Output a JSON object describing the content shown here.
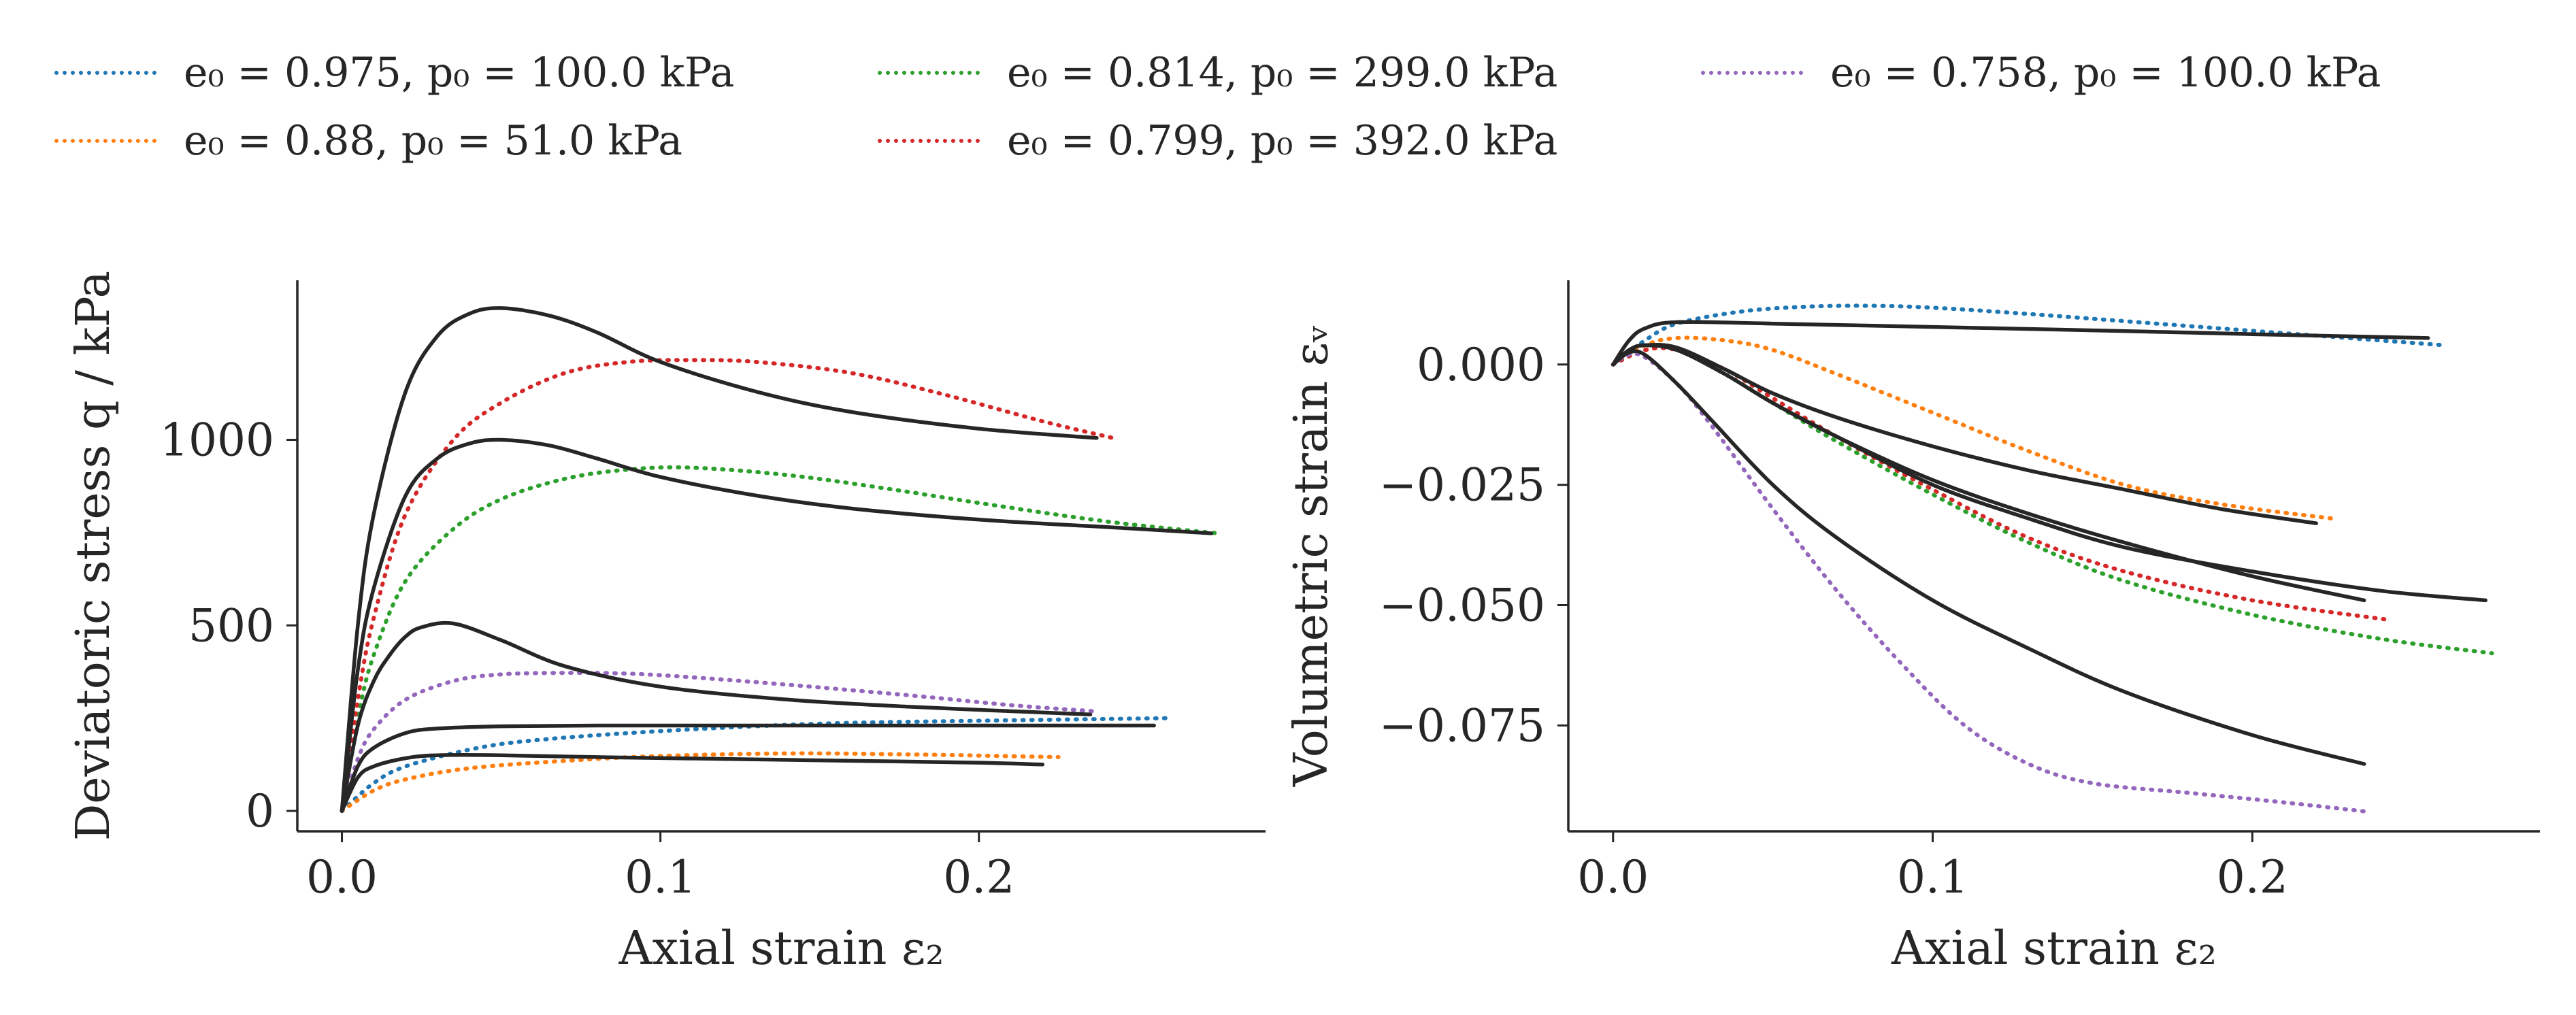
{
  "legend": {
    "items": [
      {
        "label": "e₀ = 0.975, p₀ = 100.0 kPa",
        "color": "#1f77b4"
      },
      {
        "label": "e₀ = 0.88, p₀ = 51.0 kPa",
        "color": "#ff7f0e"
      },
      {
        "label": "e₀ = 0.814, p₀ = 299.0 kPa",
        "color": "#2ca02c"
      },
      {
        "label": "e₀ = 0.799, p₀ = 392.0 kPa",
        "color": "#d62728"
      },
      {
        "label": "e₀ = 0.758, p₀ = 100.0 kPa",
        "color": "#9467bd"
      }
    ]
  },
  "chart_data": [
    {
      "type": "line",
      "xlabel": "Axial strain ε₂",
      "ylabel": "Deviatoric stress q / kPa",
      "xlim": [
        -0.014,
        0.29
      ],
      "ylim": [
        -55,
        1430
      ],
      "xticks": [
        0.0,
        0.1,
        0.2
      ],
      "xtick_labels": [
        "0.0",
        "0.1",
        "0.2"
      ],
      "yticks": [
        0,
        500,
        1000
      ],
      "ytick_labels": [
        "0",
        "500",
        "1000"
      ],
      "grid": false,
      "series": [
        {
          "name": "e₀ = 0.975, p₀ = 100.0 kPa",
          "style": "dotted",
          "color": "#1f77b4",
          "x": [
            0,
            0.01,
            0.02,
            0.04,
            0.06,
            0.1,
            0.15,
            0.2,
            0.26
          ],
          "y": [
            0,
            75,
            120,
            165,
            190,
            215,
            235,
            243,
            250
          ]
        },
        {
          "name": "e₀ = 0.88, p₀ = 51.0 kPa",
          "style": "dotted",
          "color": "#ff7f0e",
          "x": [
            0,
            0.01,
            0.02,
            0.04,
            0.07,
            0.1,
            0.14,
            0.18,
            0.225
          ],
          "y": [
            0,
            55,
            85,
            115,
            135,
            148,
            155,
            152,
            145
          ]
        },
        {
          "name": "e₀ = 0.814, p₀ = 299.0 kPa",
          "style": "dotted",
          "color": "#2ca02c",
          "x": [
            0,
            0.005,
            0.01,
            0.02,
            0.035,
            0.05,
            0.07,
            0.09,
            0.11,
            0.14,
            0.17,
            0.2,
            0.24,
            0.275
          ],
          "y": [
            0,
            250,
            420,
            620,
            760,
            840,
            895,
            920,
            925,
            905,
            870,
            830,
            780,
            748
          ]
        },
        {
          "name": "e₀ = 0.799, p₀ = 392.0 kPa",
          "style": "dotted",
          "color": "#d62728",
          "x": [
            0,
            0.005,
            0.01,
            0.02,
            0.035,
            0.05,
            0.07,
            0.09,
            0.11,
            0.13,
            0.16,
            0.19,
            0.22,
            0.242
          ],
          "y": [
            0,
            300,
            520,
            800,
            1000,
            1100,
            1180,
            1210,
            1215,
            1210,
            1180,
            1120,
            1050,
            1005
          ]
        },
        {
          "name": "e₀ = 0.758, p₀ = 100.0 kPa",
          "style": "dotted",
          "color": "#9467bd",
          "x": [
            0,
            0.005,
            0.01,
            0.02,
            0.035,
            0.05,
            0.07,
            0.09,
            0.11,
            0.14,
            0.18,
            0.21,
            0.237
          ],
          "y": [
            0,
            140,
            220,
            300,
            350,
            368,
            372,
            370,
            360,
            340,
            310,
            285,
            268
          ]
        },
        {
          "name": "",
          "style": "solid",
          "color": "#262626",
          "x": [
            0,
            0.005,
            0.01,
            0.02,
            0.03,
            0.05,
            0.08,
            0.12,
            0.16,
            0.2,
            0.255
          ],
          "y": [
            0,
            120,
            170,
            210,
            222,
            228,
            230,
            230,
            230,
            230,
            230
          ]
        },
        {
          "name": "",
          "style": "solid",
          "color": "#262626",
          "x": [
            0,
            0.005,
            0.01,
            0.02,
            0.03,
            0.05,
            0.08,
            0.12,
            0.16,
            0.2,
            0.22
          ],
          "y": [
            0,
            90,
            120,
            142,
            150,
            150,
            145,
            140,
            135,
            130,
            125
          ]
        },
        {
          "name": "",
          "style": "solid",
          "color": "#262626",
          "x": [
            0,
            0.005,
            0.01,
            0.015,
            0.02,
            0.025,
            0.035,
            0.05,
            0.07,
            0.1,
            0.14,
            0.18,
            0.235
          ],
          "y": [
            0,
            230,
            350,
            420,
            470,
            495,
            505,
            460,
            390,
            335,
            300,
            280,
            260
          ]
        },
        {
          "name": "",
          "style": "solid",
          "color": "#262626",
          "x": [
            0,
            0.005,
            0.01,
            0.02,
            0.03,
            0.04,
            0.05,
            0.065,
            0.08,
            0.1,
            0.13,
            0.16,
            0.2,
            0.24,
            0.273
          ],
          "y": [
            0,
            380,
            600,
            850,
            950,
            990,
            1000,
            985,
            950,
            900,
            850,
            815,
            785,
            765,
            748
          ]
        },
        {
          "name": "",
          "style": "solid",
          "color": "#262626",
          "x": [
            0,
            0.005,
            0.01,
            0.02,
            0.03,
            0.04,
            0.05,
            0.065,
            0.08,
            0.1,
            0.13,
            0.16,
            0.2,
            0.237
          ],
          "y": [
            0,
            500,
            800,
            1130,
            1280,
            1340,
            1355,
            1335,
            1290,
            1210,
            1130,
            1075,
            1030,
            1005
          ]
        }
      ]
    },
    {
      "type": "line",
      "xlabel": "Axial strain ε₂",
      "ylabel": "Volumetric strain εᵥ",
      "xlim": [
        -0.014,
        0.29
      ],
      "ylim": [
        -0.097,
        0.0175
      ],
      "xticks": [
        0.0,
        0.1,
        0.2
      ],
      "xtick_labels": [
        "0.0",
        "0.1",
        "0.2"
      ],
      "yticks": [
        0.0,
        -0.025,
        -0.05,
        -0.075
      ],
      "ytick_labels": [
        "0.000",
        "−0.025",
        "−0.050",
        "−0.075"
      ],
      "grid": false,
      "series": [
        {
          "name": "e₀ = 0.975, p₀ = 100.0 kPa",
          "style": "dotted",
          "color": "#1f77b4",
          "x": [
            0,
            0.01,
            0.02,
            0.04,
            0.06,
            0.08,
            0.1,
            0.13,
            0.16,
            0.2,
            0.23,
            0.26
          ],
          "y": [
            0,
            0.005,
            0.0085,
            0.011,
            0.012,
            0.0122,
            0.0118,
            0.0105,
            0.009,
            0.007,
            0.0055,
            0.004
          ]
        },
        {
          "name": "e₀ = 0.88, p₀ = 51.0 kPa",
          "style": "dotted",
          "color": "#ff7f0e",
          "x": [
            0,
            0.01,
            0.02,
            0.035,
            0.05,
            0.07,
            0.1,
            0.13,
            0.16,
            0.19,
            0.225
          ],
          "y": [
            0,
            0.004,
            0.0055,
            0.005,
            0.003,
            -0.002,
            -0.01,
            -0.018,
            -0.025,
            -0.029,
            -0.032
          ]
        },
        {
          "name": "e₀ = 0.814, p₀ = 299.0 kPa",
          "style": "dotted",
          "color": "#2ca02c",
          "x": [
            0,
            0.01,
            0.02,
            0.035,
            0.05,
            0.07,
            0.1,
            0.13,
            0.16,
            0.2,
            0.24,
            0.275
          ],
          "y": [
            0,
            0.003,
            0.003,
            -0.002,
            -0.008,
            -0.016,
            -0.027,
            -0.037,
            -0.045,
            -0.052,
            -0.057,
            -0.06
          ]
        },
        {
          "name": "e₀ = 0.799, p₀ = 392.0 kPa",
          "style": "dotted",
          "color": "#d62728",
          "x": [
            0,
            0.01,
            0.02,
            0.035,
            0.05,
            0.07,
            0.1,
            0.13,
            0.16,
            0.2,
            0.242
          ],
          "y": [
            0,
            0.003,
            0.003,
            -0.001,
            -0.007,
            -0.015,
            -0.026,
            -0.036,
            -0.043,
            -0.049,
            -0.053
          ]
        },
        {
          "name": "e₀ = 0.758, p₀ = 100.0 kPa",
          "style": "dotted",
          "color": "#9467bd",
          "x": [
            0,
            0.005,
            0.01,
            0.02,
            0.03,
            0.05,
            0.07,
            0.09,
            0.11,
            0.13,
            0.15,
            0.18,
            0.21,
            0.237
          ],
          "y": [
            0,
            0.002,
            0.0015,
            -0.004,
            -0.012,
            -0.03,
            -0.047,
            -0.062,
            -0.075,
            -0.083,
            -0.087,
            -0.089,
            -0.091,
            -0.093
          ]
        },
        {
          "name": "",
          "style": "solid",
          "color": "#262626",
          "x": [
            0,
            0.005,
            0.01,
            0.02,
            0.05,
            0.1,
            0.15,
            0.2,
            0.255
          ],
          "y": [
            0,
            0.005,
            0.0075,
            0.0088,
            0.0085,
            0.0078,
            0.0071,
            0.0063,
            0.0055
          ]
        },
        {
          "name": "",
          "style": "solid",
          "color": "#262626",
          "x": [
            0,
            0.005,
            0.01,
            0.02,
            0.035,
            0.05,
            0.07,
            0.1,
            0.13,
            0.16,
            0.19,
            0.22
          ],
          "y": [
            0,
            0.003,
            0.004,
            0.0035,
            -0.001,
            -0.006,
            -0.011,
            -0.017,
            -0.022,
            -0.026,
            -0.03,
            -0.033
          ]
        },
        {
          "name": "",
          "style": "solid",
          "color": "#262626",
          "x": [
            0,
            0.005,
            0.01,
            0.02,
            0.035,
            0.05,
            0.07,
            0.1,
            0.13,
            0.16,
            0.2,
            0.235
          ],
          "y": [
            0,
            0.003,
            0.004,
            0.003,
            -0.002,
            -0.008,
            -0.015,
            -0.024,
            -0.031,
            -0.037,
            -0.044,
            -0.049
          ]
        },
        {
          "name": "",
          "style": "solid",
          "color": "#262626",
          "x": [
            0,
            0.005,
            0.01,
            0.02,
            0.035,
            0.05,
            0.07,
            0.1,
            0.13,
            0.16,
            0.2,
            0.24,
            0.273
          ],
          "y": [
            0,
            0.003,
            0.004,
            0.003,
            -0.002,
            -0.008,
            -0.015,
            -0.025,
            -0.032,
            -0.038,
            -0.043,
            -0.047,
            -0.049
          ]
        },
        {
          "name": "",
          "style": "solid",
          "color": "#262626",
          "x": [
            0,
            0.005,
            0.01,
            0.02,
            0.03,
            0.05,
            0.07,
            0.1,
            0.13,
            0.16,
            0.2,
            0.235
          ],
          "y": [
            0,
            0.0025,
            0.002,
            -0.004,
            -0.011,
            -0.025,
            -0.036,
            -0.049,
            -0.059,
            -0.068,
            -0.077,
            -0.083
          ]
        }
      ]
    }
  ]
}
